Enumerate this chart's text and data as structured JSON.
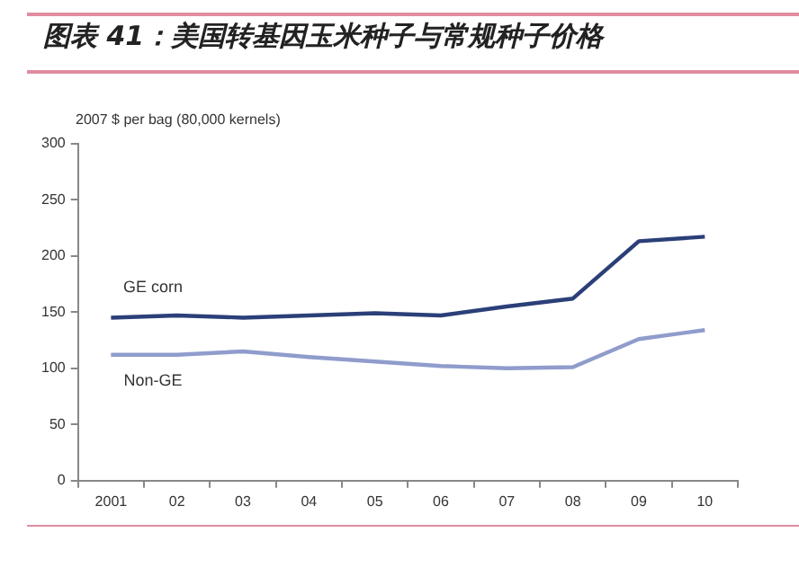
{
  "chart_data": {
    "type": "line",
    "title": "图表 41：美国转基因玉米种子与常规种子价格",
    "ylabel": "2007 $ per bag (80,000 kernels)",
    "categories": [
      "2001",
      "02",
      "03",
      "04",
      "05",
      "06",
      "07",
      "08",
      "09",
      "10"
    ],
    "series": [
      {
        "name": "GE corn",
        "color": "#2b3f78",
        "values": [
          145,
          147,
          145,
          147,
          149,
          147,
          155,
          162,
          213,
          217
        ]
      },
      {
        "name": "Non-GE",
        "color": "#8f9ccc",
        "values": [
          112,
          112,
          115,
          110,
          106,
          102,
          100,
          101,
          126,
          134
        ]
      }
    ],
    "ylim": [
      0,
      300
    ],
    "yticks": [
      0,
      50,
      100,
      150,
      200,
      250,
      300
    ],
    "grid": false,
    "legend": false,
    "marker": "none",
    "line_style": "solid"
  }
}
